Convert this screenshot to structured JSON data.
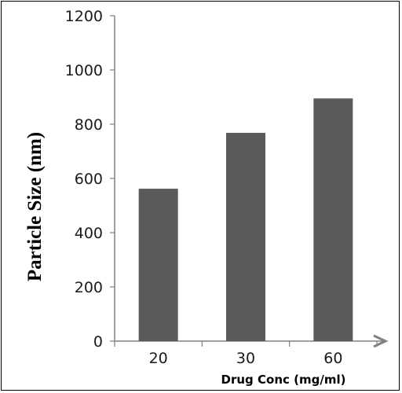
{
  "chart_data": {
    "type": "bar",
    "categories": [
      "20",
      "30",
      "60"
    ],
    "values": [
      562,
      768,
      895
    ],
    "ylabel": "Particle Size (nm)",
    "xlabel": "Drug Conc (mg/ml)",
    "ylim": [
      0,
      1200
    ],
    "yticks": [
      "0",
      "200",
      "400",
      "600",
      "800",
      "1000",
      "1200"
    ],
    "grid": false,
    "legend": "none",
    "bar_color": "#5a5a5a",
    "axis_color": "#808080"
  }
}
